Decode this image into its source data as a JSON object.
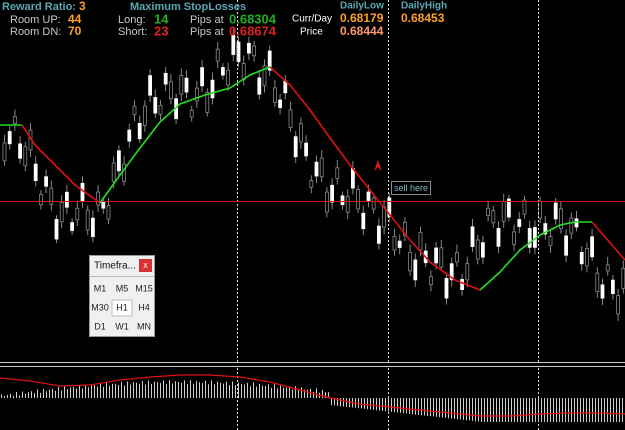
{
  "header": {
    "reward_ratio": {
      "label": "Reward Ratio:",
      "value": "3"
    },
    "room_up": {
      "label": "Room UP:",
      "value": "44"
    },
    "room_dn": {
      "label": "Room DN:",
      "value": "70"
    },
    "stoplosses_title": "Maximum StopLosses",
    "long": {
      "label": "Long:",
      "value": "14",
      "pips_label": "Pips at",
      "pips_value": "0.68304"
    },
    "short": {
      "label": "Short:",
      "value": "23",
      "pips_label": "Pips at",
      "pips_value": "0.68674"
    },
    "curr_day": {
      "label": "Curr/Day",
      "value": "0.68179"
    },
    "price": {
      "label": "Price",
      "value": "0.68444"
    },
    "daily_low": "DailyLow",
    "daily_high": {
      "label": "DailyHigh",
      "value": "0.68453"
    }
  },
  "annotation": "sell here",
  "timeframe_panel": {
    "title": "Timefra...",
    "close": "x",
    "buttons": [
      [
        "M1",
        "M5",
        "M15"
      ],
      [
        "M30",
        "H1",
        "H4"
      ],
      [
        "D1",
        "W1",
        "MN"
      ]
    ]
  }
}
